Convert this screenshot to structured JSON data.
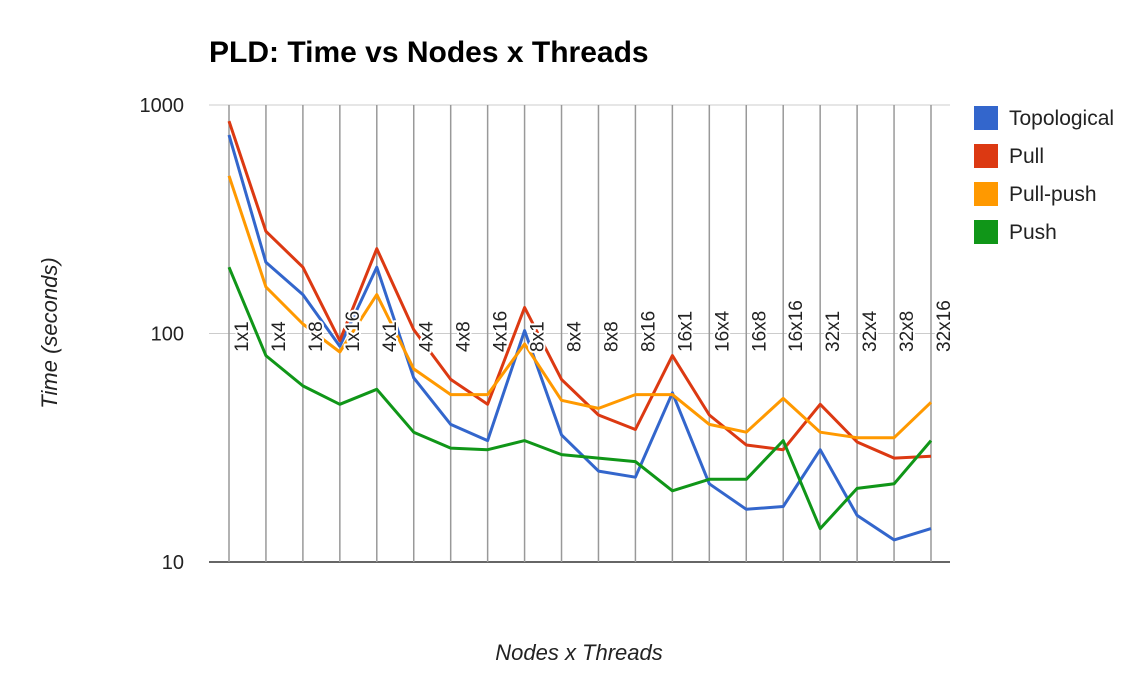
{
  "chart_data": {
    "type": "line",
    "title": "PLD: Time vs Nodes x Threads",
    "xlabel": "Nodes x Threads",
    "ylabel": "Time (seconds)",
    "yscale": "log",
    "ylim": [
      10,
      1000
    ],
    "yticks": [
      "10",
      "100",
      "1000"
    ],
    "grid": "vertical",
    "legend": "right",
    "categories": [
      "1x1",
      "1x4",
      "1x8",
      "1x16",
      "4x1",
      "4x4",
      "4x8",
      "4x16",
      "8x1",
      "8x4",
      "8x8",
      "8x16",
      "16x1",
      "16x4",
      "16x8",
      "16x16",
      "32x1",
      "32x4",
      "32x8",
      "32x16"
    ],
    "series": [
      {
        "name": "Topological",
        "color": "#3366cc",
        "values": [
          740,
          205,
          148,
          88,
          195,
          64,
          40,
          34,
          103,
          36,
          25,
          23.5,
          55,
          22,
          17,
          17.5,
          31,
          16,
          12.5,
          14
        ]
      },
      {
        "name": "Pull",
        "color": "#dc3912",
        "values": [
          850,
          280,
          195,
          93,
          235,
          104,
          63,
          49,
          130,
          63,
          44,
          38,
          80,
          44,
          32.5,
          31,
          49,
          33.5,
          28.5,
          29
        ]
      },
      {
        "name": "Pull-push",
        "color": "#ff9900",
        "values": [
          490,
          160,
          110,
          83,
          148,
          70,
          54,
          54,
          90,
          51,
          47,
          54,
          54,
          40,
          37,
          52,
          37,
          35,
          35,
          50
        ]
      },
      {
        "name": "Push",
        "color": "#109618",
        "values": [
          195,
          80,
          59,
          49,
          57,
          37,
          31.5,
          31,
          34,
          29.5,
          28.5,
          27.5,
          20.5,
          23,
          23,
          34,
          14,
          21,
          22,
          34
        ]
      }
    ]
  }
}
